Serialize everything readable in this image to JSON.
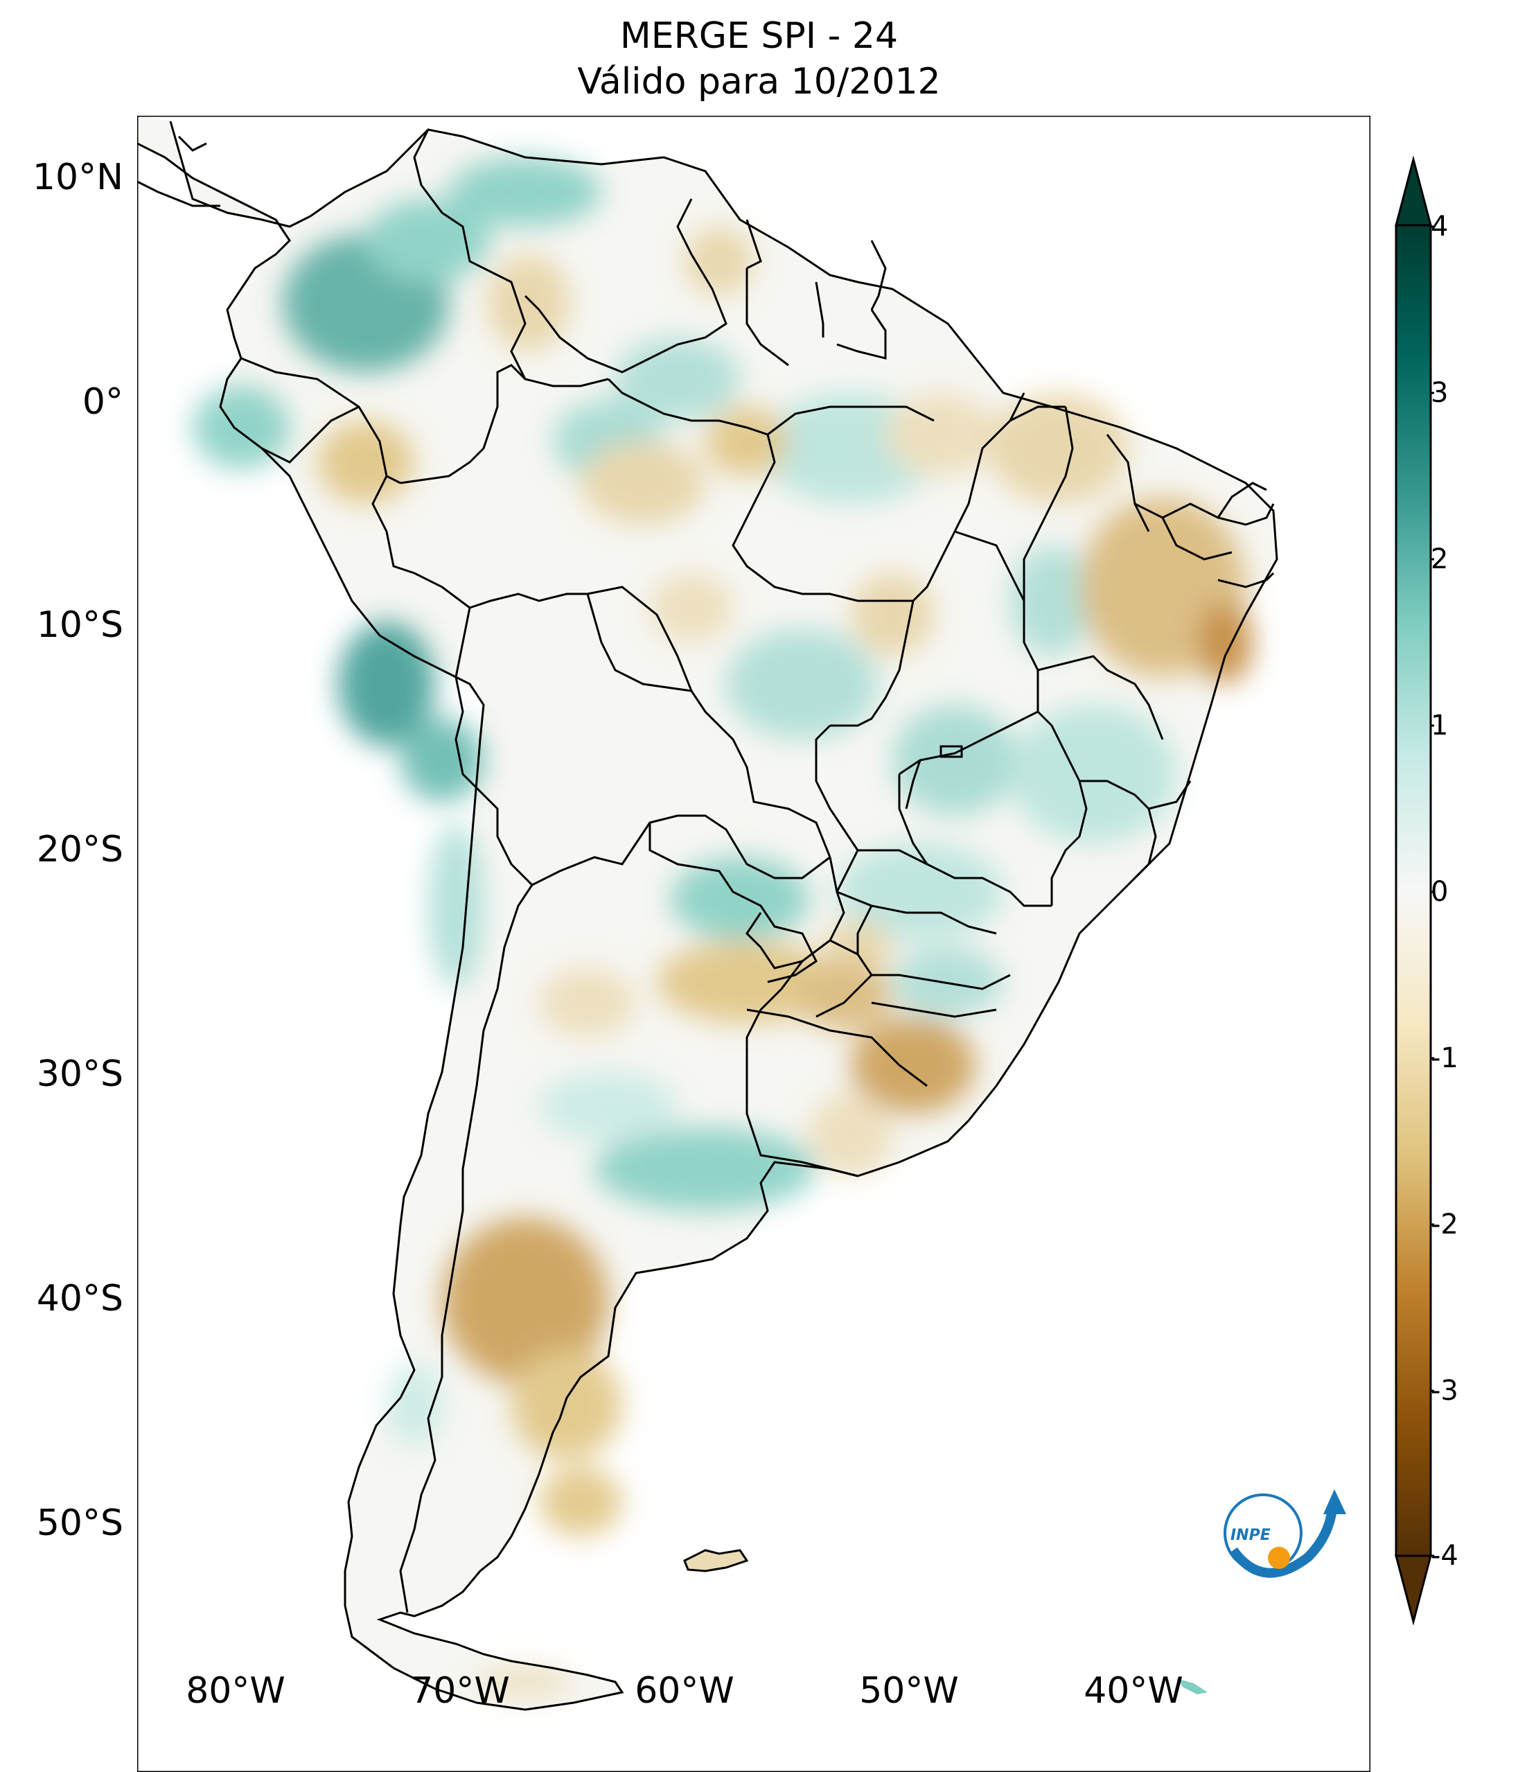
{
  "title": "MERGE   SPI - 24",
  "subtitle": "Válido para 10/2012",
  "lat_labels": [
    "10°N",
    "0°",
    "10°S",
    "20°S",
    "30°S",
    "40°S",
    "50°S"
  ],
  "lon_labels": [
    "80°W",
    "70°W",
    "60°W",
    "50°W",
    "40°W"
  ],
  "colorbar": {
    "ticks": [
      "4",
      "3",
      "2",
      "1",
      "0",
      "-1",
      "-2",
      "-3",
      "-4"
    ],
    "min": -4,
    "max": 4,
    "extend": "both",
    "colors": [
      "#543005",
      "#8c510a",
      "#bf812d",
      "#dfc27d",
      "#f6e8c3",
      "#f5f5f5",
      "#c7eae5",
      "#80cdc1",
      "#35978f",
      "#01665e",
      "#003c30"
    ]
  },
  "logo": {
    "text": "INPE"
  },
  "map": {
    "projection": "PlateCarree",
    "region": "South America",
    "variable": "SPI-24 (Standardized Precipitation Index)",
    "lon_range": [
      -85,
      -30
    ],
    "lat_range": [
      -56,
      13
    ],
    "land_base_color": "#f6f6f2"
  }
}
